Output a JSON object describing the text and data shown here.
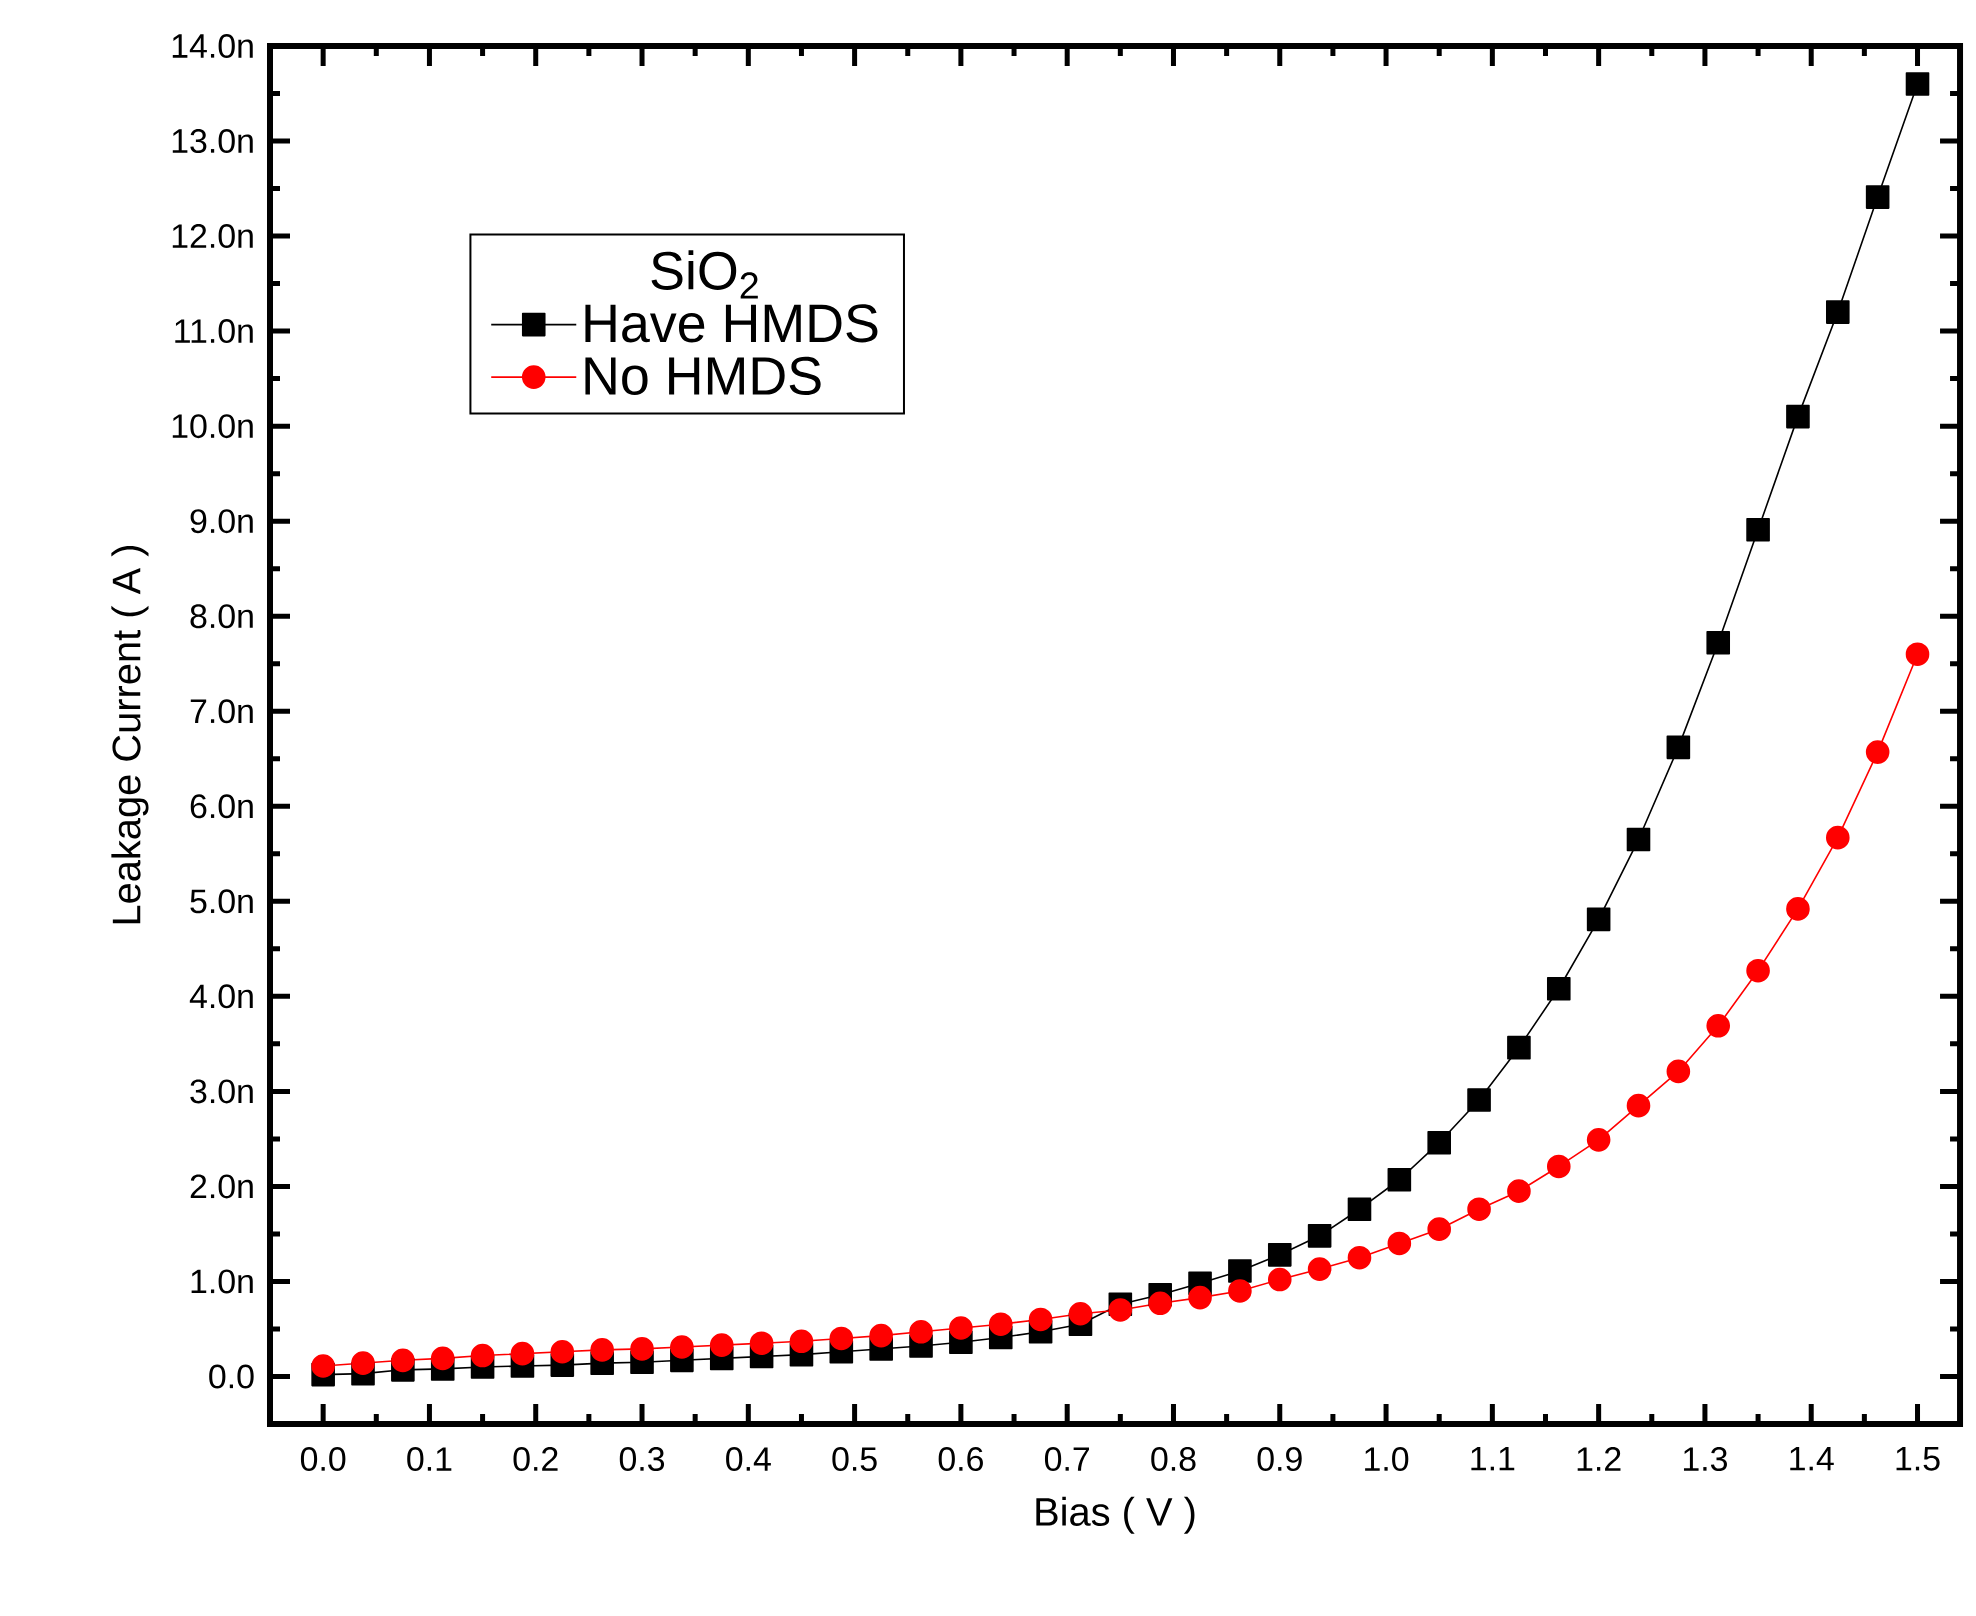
{
  "chart_data": {
    "type": "line",
    "xlabel": "Bias ( V )",
    "ylabel": "Leakage Current ( A )",
    "legend_title": "SiO$_{2}$",
    "x": [
      0,
      0.0375,
      0.075,
      0.1125,
      0.15,
      0.1875,
      0.225,
      0.2625,
      0.3,
      0.3375,
      0.375,
      0.4125,
      0.45,
      0.4875,
      0.525,
      0.5625,
      0.6,
      0.6375,
      0.675,
      0.7125,
      0.75,
      0.7875,
      0.825,
      0.8625,
      0.9,
      0.9375,
      0.975,
      1.0125,
      1.05,
      1.0875,
      1.125,
      1.1625,
      1.2,
      1.2375,
      1.275,
      1.3125,
      1.35,
      1.3875,
      1.425,
      1.4625,
      1.5
    ],
    "series": [
      {
        "name": "Have HMDS",
        "color": "#000000",
        "marker": "square",
        "values": [
          0.02,
          0.03,
          0.07,
          0.08,
          0.1,
          0.11,
          0.12,
          0.14,
          0.15,
          0.17,
          0.19,
          0.21,
          0.23,
          0.26,
          0.29,
          0.32,
          0.36,
          0.41,
          0.47,
          0.55,
          0.76,
          0.86,
          0.98,
          1.11,
          1.28,
          1.48,
          1.76,
          2.07,
          2.46,
          2.91,
          3.46,
          4.08,
          4.81,
          5.65,
          6.62,
          7.72,
          8.91,
          10.1,
          11.2,
          12.41,
          13.6
        ]
      },
      {
        "name": "No  HMDS",
        "color": "#ff0000",
        "marker": "circle",
        "values": [
          0.11,
          0.14,
          0.17,
          0.19,
          0.22,
          0.24,
          0.26,
          0.28,
          0.29,
          0.31,
          0.33,
          0.35,
          0.37,
          0.4,
          0.43,
          0.47,
          0.51,
          0.55,
          0.6,
          0.66,
          0.7,
          0.77,
          0.83,
          0.9,
          1.02,
          1.13,
          1.25,
          1.4,
          1.55,
          1.76,
          1.95,
          2.21,
          2.49,
          2.85,
          3.21,
          3.69,
          4.27,
          4.92,
          5.67,
          6.57,
          7.6
        ]
      }
    ],
    "xlim": [
      -0.05,
      1.54
    ],
    "ylim": [
      -0.5,
      14.0
    ],
    "xticks": [
      {
        "value": 0,
        "label": "0.0"
      },
      {
        "value": 0.1,
        "label": "0.1"
      },
      {
        "value": 0.2,
        "label": "0.2"
      },
      {
        "value": 0.3,
        "label": "0.3"
      },
      {
        "value": 0.4,
        "label": "0.4"
      },
      {
        "value": 0.5,
        "label": "0.5"
      },
      {
        "value": 0.6,
        "label": "0.6"
      },
      {
        "value": 0.7,
        "label": "0.7"
      },
      {
        "value": 0.8,
        "label": "0.8"
      },
      {
        "value": 0.9,
        "label": "0.9"
      },
      {
        "value": 1.0,
        "label": "1.0"
      },
      {
        "value": 1.1,
        "label": "1.1"
      },
      {
        "value": 1.2,
        "label": "1.2"
      },
      {
        "value": 1.3,
        "label": "1.3"
      },
      {
        "value": 1.4,
        "label": "1.4"
      },
      {
        "value": 1.5,
        "label": "1.5"
      }
    ],
    "yticks": [
      {
        "value": 0,
        "label": "0.0"
      },
      {
        "value": 1,
        "label": "1.0n"
      },
      {
        "value": 2,
        "label": "2.0n"
      },
      {
        "value": 3,
        "label": "3.0n"
      },
      {
        "value": 4,
        "label": "4.0n"
      },
      {
        "value": 5,
        "label": "5.0n"
      },
      {
        "value": 6,
        "label": "6.0n"
      },
      {
        "value": 7,
        "label": "7.0n"
      },
      {
        "value": 8,
        "label": "8.0n"
      },
      {
        "value": 9,
        "label": "9.0n"
      },
      {
        "value": 10,
        "label": "10.0n"
      },
      {
        "value": 11,
        "label": "11.0n"
      },
      {
        "value": 12,
        "label": "12.0n"
      },
      {
        "value": 13,
        "label": "13.0n"
      },
      {
        "value": 14,
        "label": "14.0n"
      }
    ],
    "legend": "top left",
    "line_style": "solid"
  }
}
